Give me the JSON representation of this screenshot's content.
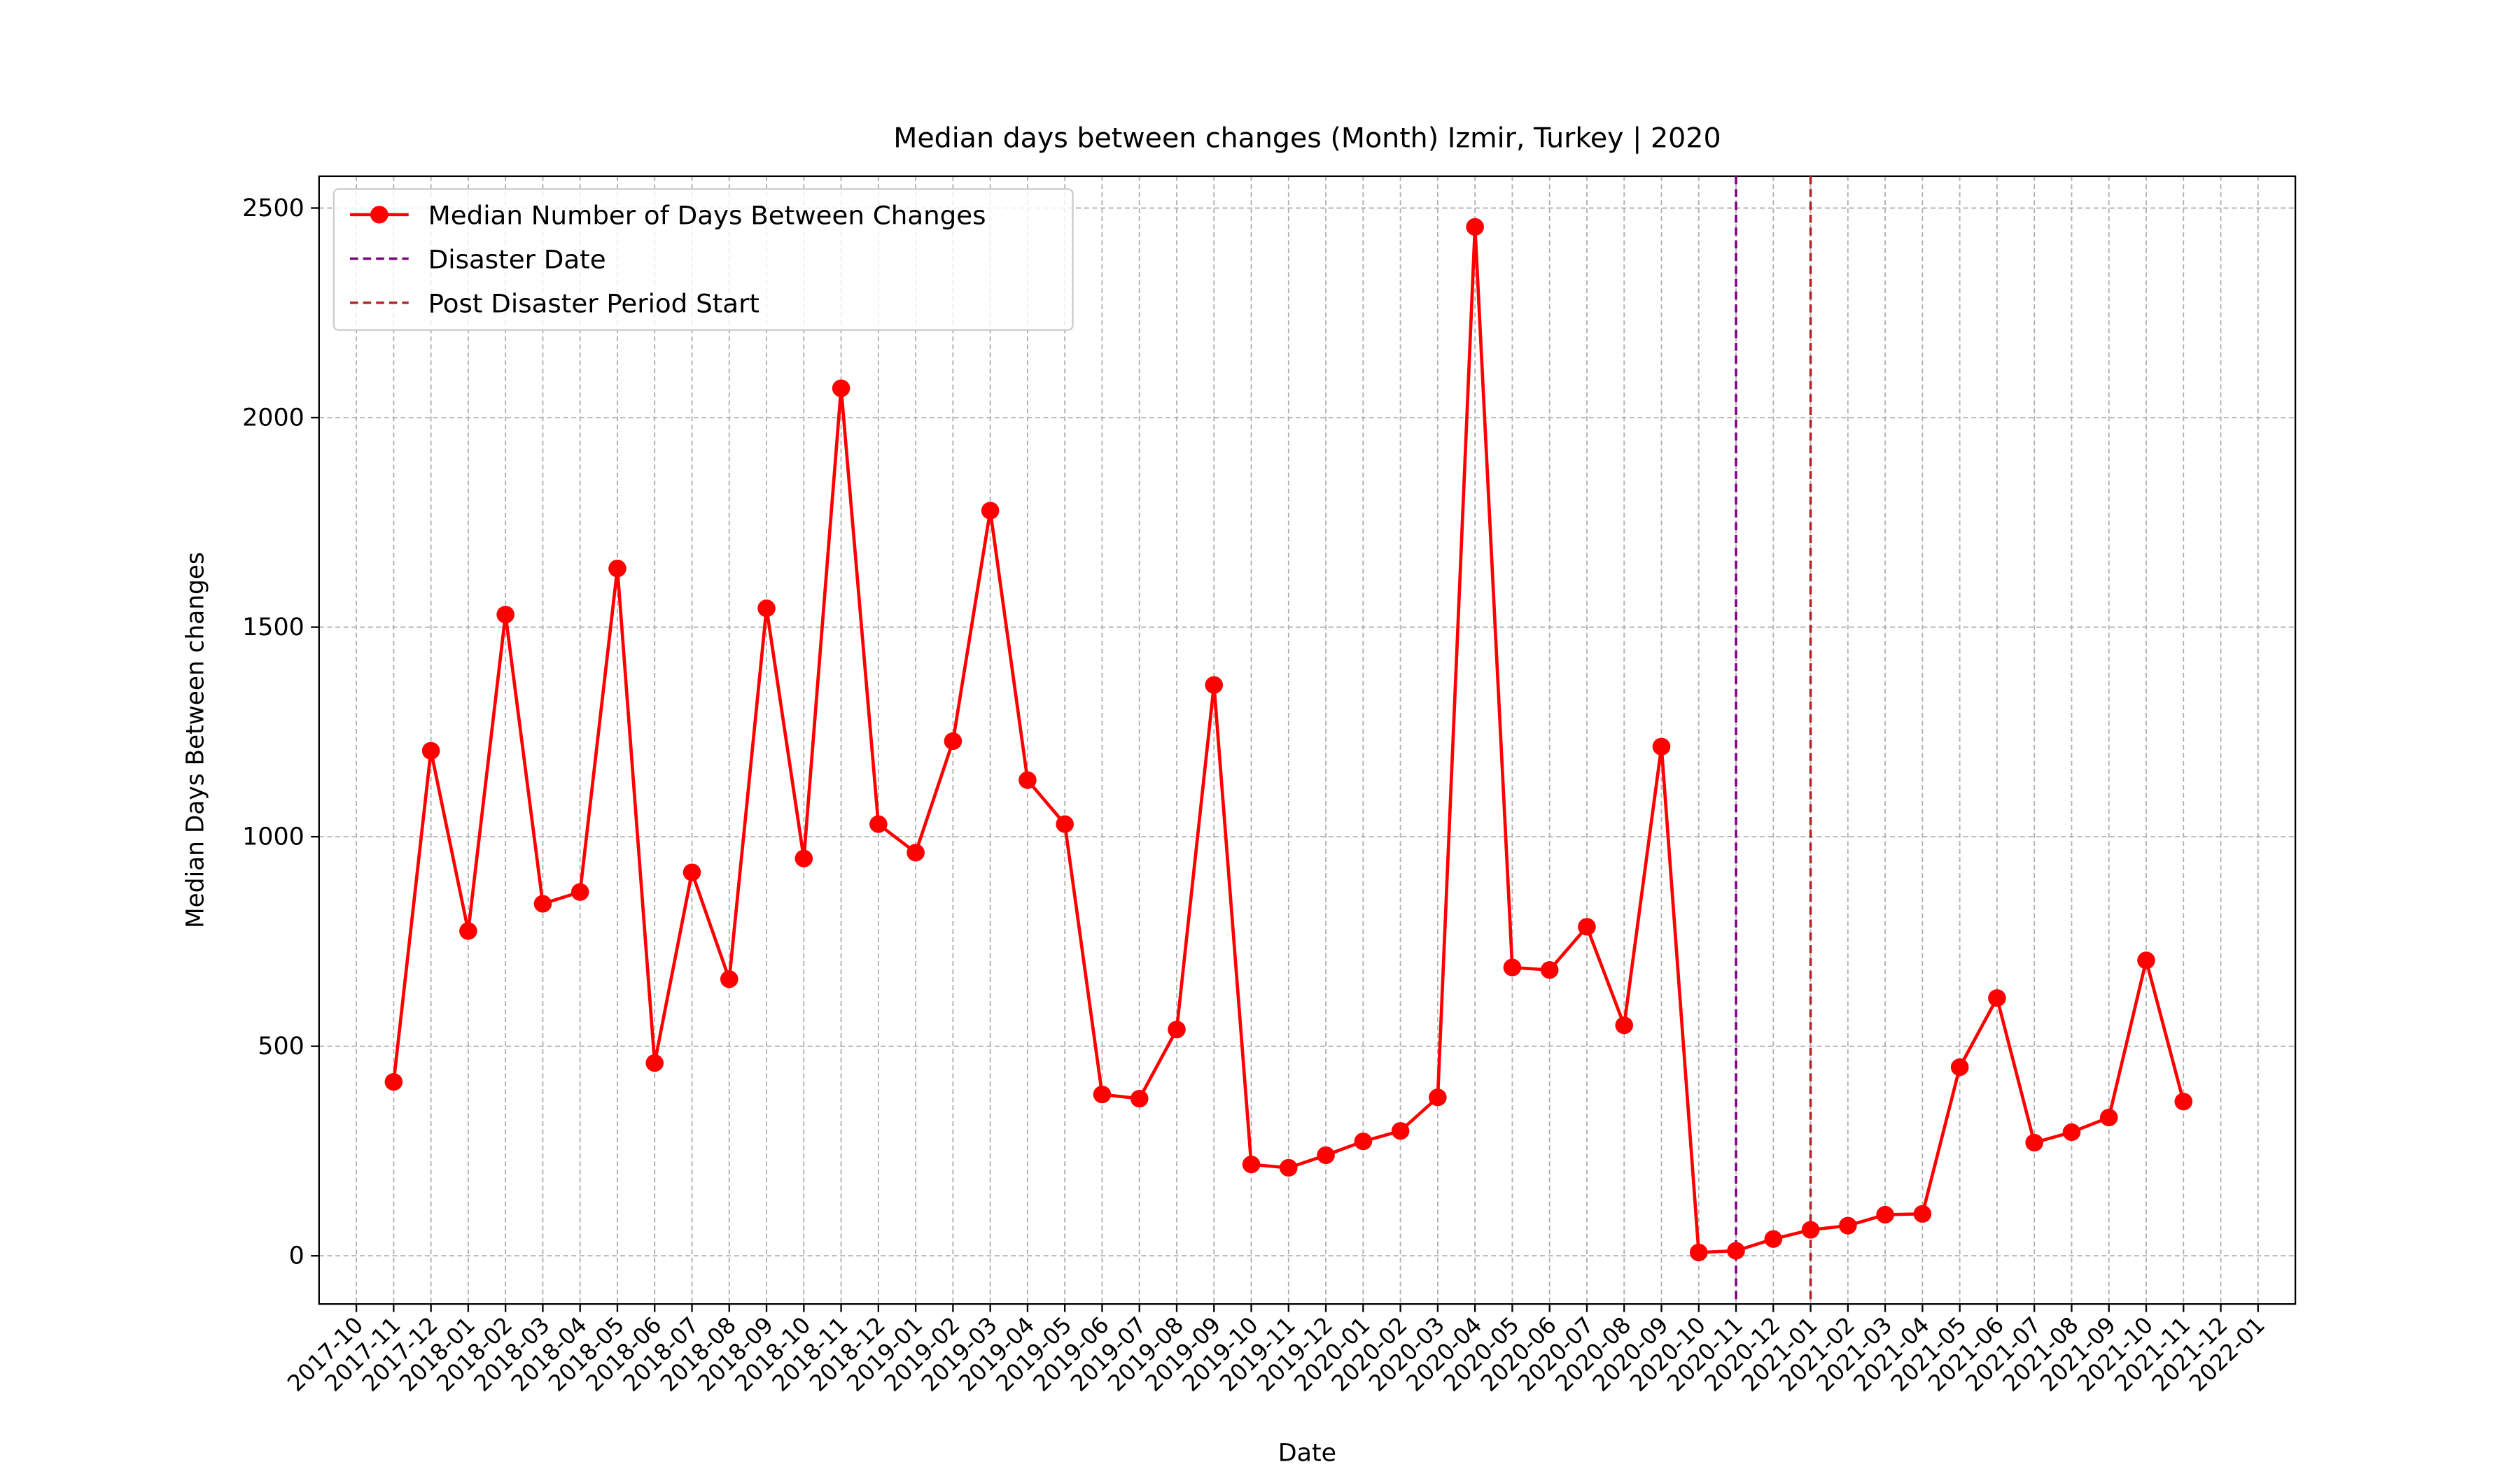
{
  "chart_data": {
    "type": "line",
    "title": "Median days between changes (Month) Izmir, Turkey | 2020",
    "xlabel": "Date",
    "ylabel": "Median Days Between changes",
    "x": [
      "2017-11",
      "2017-12",
      "2018-01",
      "2018-02",
      "2018-03",
      "2018-04",
      "2018-05",
      "2018-06",
      "2018-07",
      "2018-08",
      "2018-09",
      "2018-10",
      "2018-11",
      "2018-12",
      "2019-01",
      "2019-02",
      "2019-03",
      "2019-04",
      "2019-05",
      "2019-06",
      "2019-07",
      "2019-08",
      "2019-09",
      "2019-10",
      "2019-11",
      "2019-12",
      "2020-01",
      "2020-02",
      "2020-03",
      "2020-04",
      "2020-05",
      "2020-06",
      "2020-07",
      "2020-08",
      "2020-09",
      "2020-10",
      "2020-11",
      "2020-12",
      "2021-01",
      "2021-02",
      "2021-03",
      "2021-04",
      "2021-05",
      "2021-06",
      "2021-07",
      "2021-08",
      "2021-09",
      "2021-10",
      "2021-11"
    ],
    "series": [
      {
        "name": "Median Number of Days Between Changes",
        "color": "#ff0000",
        "values": [
          415,
          1205,
          775,
          1530,
          840,
          868,
          1640,
          460,
          915,
          660,
          1545,
          948,
          2070,
          1030,
          962,
          1228,
          1778,
          1135,
          1030,
          385,
          375,
          540,
          1362,
          218,
          210,
          240,
          273,
          298,
          378,
          2455,
          688,
          682,
          785,
          550,
          1215,
          8,
          12,
          40,
          62,
          72,
          98,
          100,
          450,
          615,
          270,
          295,
          330,
          705,
          368
        ]
      }
    ],
    "vlines": [
      {
        "name": "Disaster Date",
        "color": "#800080",
        "x": "2020-11"
      },
      {
        "name": "Post Disaster Period Start",
        "color": "#b22222",
        "x": "2021-01"
      }
    ],
    "xlim": [
      "2017-09",
      "2022-02"
    ],
    "xticks": [
      "2017-10",
      "2017-11",
      "2017-12",
      "2018-01",
      "2018-02",
      "2018-03",
      "2018-04",
      "2018-05",
      "2018-06",
      "2018-07",
      "2018-08",
      "2018-09",
      "2018-10",
      "2018-11",
      "2018-12",
      "2019-01",
      "2019-02",
      "2019-03",
      "2019-04",
      "2019-05",
      "2019-06",
      "2019-07",
      "2019-08",
      "2019-09",
      "2019-10",
      "2019-11",
      "2019-12",
      "2020-01",
      "2020-02",
      "2020-03",
      "2020-04",
      "2020-05",
      "2020-06",
      "2020-07",
      "2020-08",
      "2020-09",
      "2020-10",
      "2020-11",
      "2020-12",
      "2021-01",
      "2021-02",
      "2021-03",
      "2021-04",
      "2021-05",
      "2021-06",
      "2021-07",
      "2021-08",
      "2021-09",
      "2021-10",
      "2021-11",
      "2021-12",
      "2022-01"
    ],
    "ylim": [
      -115,
      2576
    ],
    "yticks": [
      0,
      500,
      1000,
      1500,
      2000,
      2500
    ],
    "grid": true,
    "legend": "upper left"
  }
}
